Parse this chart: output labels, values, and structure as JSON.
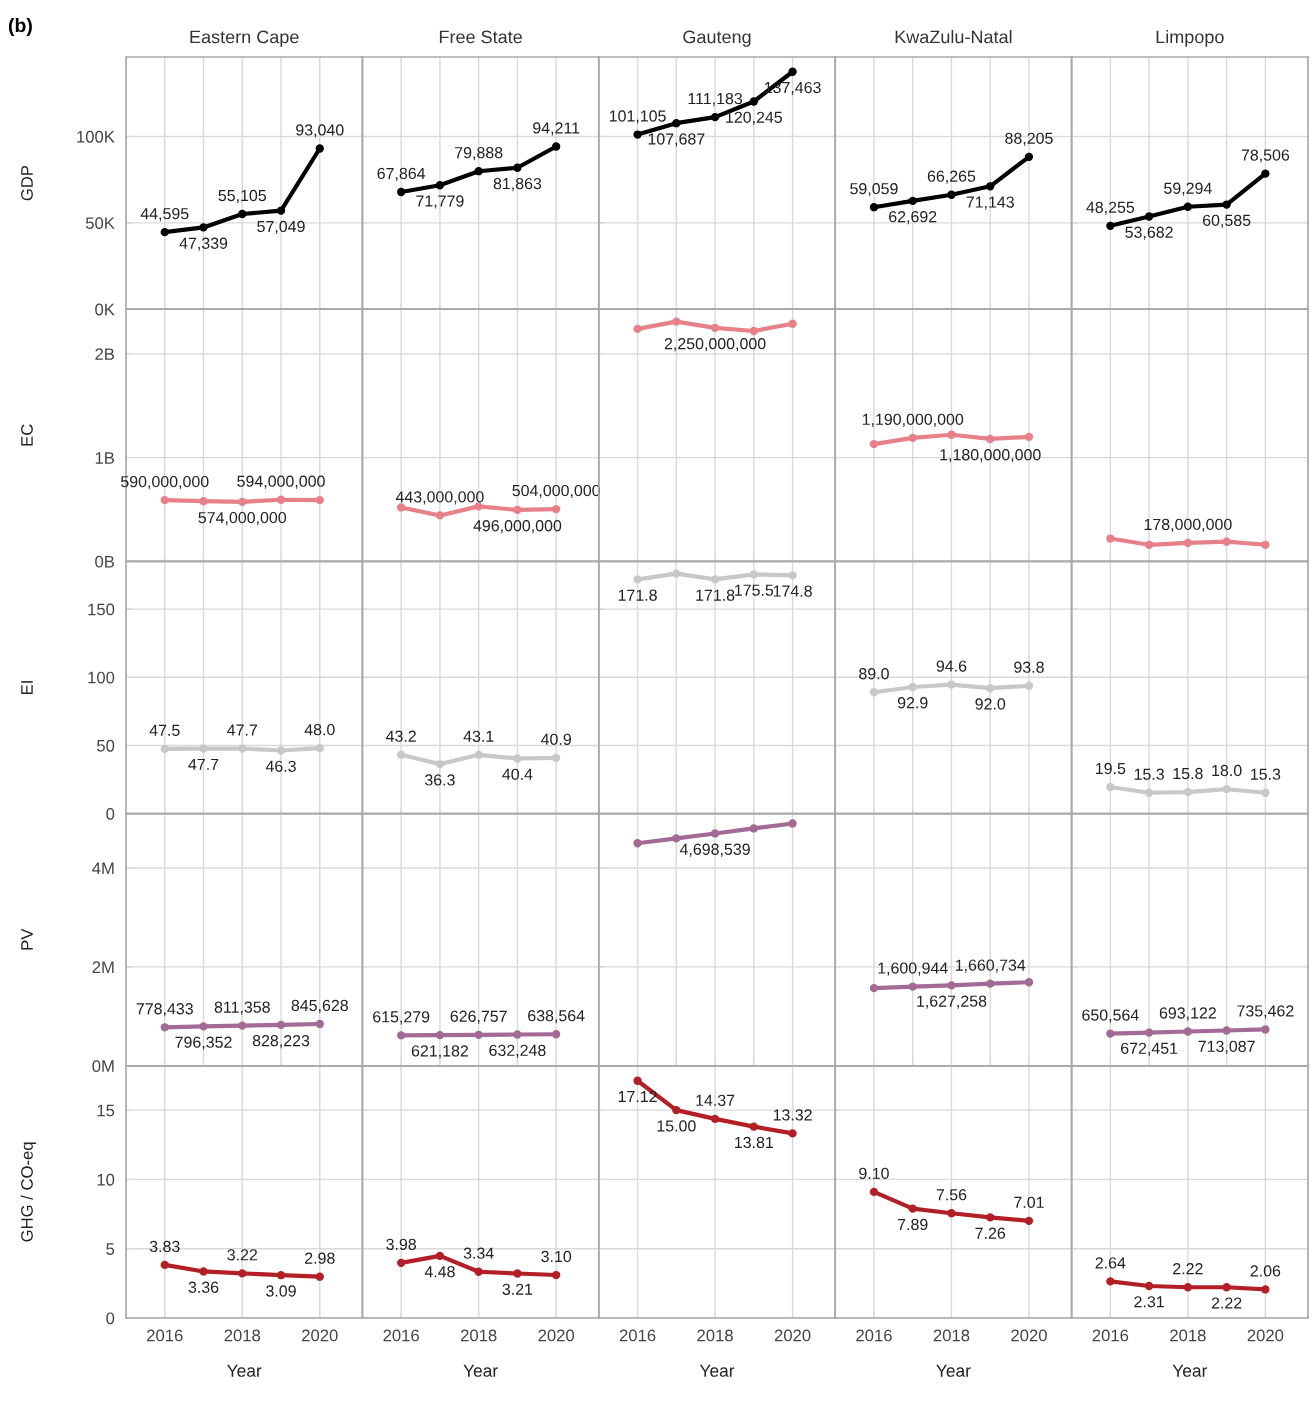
{
  "chart_data": [
    {
      "type": "line",
      "title": "Eastern Cape",
      "ylabel": "GDP",
      "annotations": [
        "(b)"
      ],
      "x": [
        2016,
        2017,
        2018,
        2019,
        2020
      ],
      "values": [
        44595,
        47339,
        55105,
        57049,
        93040
      ],
      "value_labels": [
        "44,595",
        "47,339",
        "55,105",
        "57,049",
        "93,040"
      ],
      "color": "#000000",
      "marker": "circle",
      "line_style": "solid",
      "xlim": [
        2015,
        2021.1
      ],
      "xticks": [
        2016,
        2017,
        2018,
        2019,
        2020
      ],
      "ylim": [
        0,
        146000
      ],
      "yticks": [
        {
          "value": 0,
          "label": "0K"
        },
        {
          "value": 50000,
          "label": "50K"
        },
        {
          "value": 100000,
          "label": "100K"
        }
      ],
      "grid": true,
      "tick_labels": "y"
    },
    {
      "type": "line",
      "title": "Free State",
      "x": [
        2016,
        2017,
        2018,
        2019,
        2020
      ],
      "values": [
        67864,
        71779,
        79888,
        81863,
        94211
      ],
      "value_labels": [
        "67,864",
        "71,779",
        "79,888",
        "81,863",
        "94,211"
      ],
      "color": "#000000",
      "marker": "circle",
      "line_style": "solid",
      "xlim": [
        2015,
        2021.1
      ],
      "xticks": [
        2016,
        2017,
        2018,
        2019,
        2020
      ],
      "ylim": [
        0,
        146000
      ],
      "yticks": [
        0,
        50000,
        100000
      ],
      "grid": true,
      "tick_labels": false
    },
    {
      "type": "line",
      "title": "Gauteng",
      "x": [
        2016,
        2017,
        2018,
        2019,
        2020
      ],
      "values": [
        101105,
        107687,
        111183,
        120245,
        137463
      ],
      "value_labels": [
        "101,105",
        "107,687",
        "111,183",
        "120,245",
        "137,463"
      ],
      "color": "#000000",
      "marker": "circle",
      "line_style": "solid",
      "xlim": [
        2015,
        2021.1
      ],
      "xticks": [
        2016,
        2017,
        2018,
        2019,
        2020
      ],
      "ylim": [
        0,
        146000
      ],
      "yticks": [
        0,
        50000,
        100000
      ],
      "grid": true,
      "tick_labels": false
    },
    {
      "type": "line",
      "title": "KwaZulu-Natal",
      "x": [
        2016,
        2017,
        2018,
        2019,
        2020
      ],
      "values": [
        59059,
        62692,
        66265,
        71143,
        88205
      ],
      "value_labels": [
        "59,059",
        "62,692",
        "66,265",
        "71,143",
        "88,205"
      ],
      "color": "#000000",
      "marker": "circle",
      "line_style": "solid",
      "xlim": [
        2015,
        2021.1
      ],
      "xticks": [
        2016,
        2017,
        2018,
        2019,
        2020
      ],
      "ylim": [
        0,
        146000
      ],
      "yticks": [
        0,
        50000,
        100000
      ],
      "grid": true,
      "tick_labels": false
    },
    {
      "type": "line",
      "title": "Limpopo",
      "x": [
        2016,
        2017,
        2018,
        2019,
        2020
      ],
      "values": [
        48255,
        53682,
        59294,
        60585,
        78506
      ],
      "value_labels": [
        "48,255",
        "53,682",
        "59,294",
        "60,585",
        "78,506"
      ],
      "color": "#000000",
      "marker": "circle",
      "line_style": "solid",
      "xlim": [
        2015,
        2021.1
      ],
      "xticks": [
        2016,
        2017,
        2018,
        2019,
        2020
      ],
      "ylim": [
        0,
        146000
      ],
      "yticks": [
        0,
        50000,
        100000
      ],
      "grid": true,
      "tick_labels": false
    },
    {
      "type": "line",
      "ylabel": "EC",
      "x": [
        2016,
        2017,
        2018,
        2019,
        2020
      ],
      "values": [
        590000000,
        580000000,
        574000000,
        594000000,
        590000000
      ],
      "value_labels": [
        "590,000,000",
        null,
        "574,000,000",
        "594,000,000",
        null
      ],
      "color": "#e8808a",
      "marker": "circle",
      "line_style": "solid",
      "xlim": [
        2015,
        2021.1
      ],
      "xticks": [
        2016,
        2017,
        2018,
        2019,
        2020
      ],
      "ylim": [
        0,
        2430000000
      ],
      "yticks": [
        {
          "value": 0,
          "label": "0B"
        },
        {
          "value": 1000000000,
          "label": "1B"
        },
        {
          "value": 2000000000,
          "label": "2B"
        }
      ],
      "grid": true,
      "tick_labels": "y"
    },
    {
      "type": "line",
      "x": [
        2016,
        2017,
        2018,
        2019,
        2020
      ],
      "values": [
        520000000,
        443000000,
        530000000,
        496000000,
        504000000
      ],
      "value_labels": [
        null,
        "443,000,000",
        null,
        "496,000,000",
        "504,000,000"
      ],
      "color": "#e8808a",
      "marker": "circle",
      "line_style": "solid",
      "xlim": [
        2015,
        2021.1
      ],
      "xticks": [
        2016,
        2017,
        2018,
        2019,
        2020
      ],
      "ylim": [
        0,
        2430000000
      ],
      "yticks": [
        0,
        1000000000,
        2000000000
      ],
      "grid": true,
      "tick_labels": false
    },
    {
      "type": "line",
      "x": [
        2016,
        2017,
        2018,
        2019,
        2020
      ],
      "values": [
        2240000000,
        2310000000,
        2250000000,
        2220000000,
        2290000000
      ],
      "value_labels": [
        null,
        null,
        "2,250,000,000",
        null,
        null
      ],
      "color": "#e8808a",
      "marker": "circle",
      "line_style": "solid",
      "xlim": [
        2015,
        2021.1
      ],
      "xticks": [
        2016,
        2017,
        2018,
        2019,
        2020
      ],
      "ylim": [
        0,
        2430000000
      ],
      "yticks": [
        0,
        1000000000,
        2000000000
      ],
      "grid": true,
      "tick_labels": false
    },
    {
      "type": "line",
      "x": [
        2016,
        2017,
        2018,
        2019,
        2020
      ],
      "values": [
        1130000000,
        1190000000,
        1220000000,
        1180000000,
        1200000000
      ],
      "value_labels": [
        null,
        "1,190,000,000",
        null,
        "1,180,000,000",
        null
      ],
      "color": "#e8808a",
      "marker": "circle",
      "line_style": "solid",
      "xlim": [
        2015,
        2021.1
      ],
      "xticks": [
        2016,
        2017,
        2018,
        2019,
        2020
      ],
      "ylim": [
        0,
        2430000000
      ],
      "yticks": [
        0,
        1000000000,
        2000000000
      ],
      "grid": true,
      "tick_labels": false
    },
    {
      "type": "line",
      "x": [
        2016,
        2017,
        2018,
        2019,
        2020
      ],
      "values": [
        220000000,
        160000000,
        178000000,
        190000000,
        160000000
      ],
      "value_labels": [
        null,
        null,
        "178,000,000",
        null,
        null
      ],
      "color": "#e8808a",
      "marker": "circle",
      "line_style": "solid",
      "xlim": [
        2015,
        2021.1
      ],
      "xticks": [
        2016,
        2017,
        2018,
        2019,
        2020
      ],
      "ylim": [
        0,
        2430000000
      ],
      "yticks": [
        0,
        1000000000,
        2000000000
      ],
      "grid": true,
      "tick_labels": false
    },
    {
      "type": "line",
      "ylabel": "EI",
      "x": [
        2016,
        2017,
        2018,
        2019,
        2020
      ],
      "values": [
        47.5,
        47.7,
        47.7,
        46.3,
        48.0
      ],
      "value_labels": [
        "47.5",
        "47.7",
        "47.7",
        "46.3",
        "48.0"
      ],
      "color": "#c8c8c8",
      "marker": "circle",
      "line_style": "solid",
      "xlim": [
        2015,
        2021.1
      ],
      "xticks": [
        2016,
        2017,
        2018,
        2019,
        2020
      ],
      "ylim": [
        0,
        185
      ],
      "yticks": [
        0,
        50,
        100,
        150
      ],
      "grid": true,
      "tick_labels": "y"
    },
    {
      "type": "line",
      "x": [
        2016,
        2017,
        2018,
        2019,
        2020
      ],
      "values": [
        43.2,
        36.3,
        43.1,
        40.4,
        40.9
      ],
      "value_labels": [
        "43.2",
        "36.3",
        "43.1",
        "40.4",
        "40.9"
      ],
      "color": "#c8c8c8",
      "marker": "circle",
      "line_style": "solid",
      "xlim": [
        2015,
        2021.1
      ],
      "xticks": [
        2016,
        2017,
        2018,
        2019,
        2020
      ],
      "ylim": [
        0,
        185
      ],
      "yticks": [
        0,
        50,
        100,
        150
      ],
      "grid": true,
      "tick_labels": false
    },
    {
      "type": "line",
      "x": [
        2016,
        2017,
        2018,
        2019,
        2020
      ],
      "values": [
        171.8,
        176,
        171.8,
        175.5,
        174.8
      ],
      "value_labels": [
        "171.8",
        null,
        "171.8",
        "175.5",
        "174.8"
      ],
      "color": "#c8c8c8",
      "marker": "circle",
      "line_style": "solid",
      "xlim": [
        2015,
        2021.1
      ],
      "xticks": [
        2016,
        2017,
        2018,
        2019,
        2020
      ],
      "ylim": [
        0,
        185
      ],
      "yticks": [
        0,
        50,
        100,
        150
      ],
      "grid": true,
      "tick_labels": false
    },
    {
      "type": "line",
      "x": [
        2016,
        2017,
        2018,
        2019,
        2020
      ],
      "values": [
        89.0,
        92.9,
        94.6,
        92.0,
        93.8
      ],
      "value_labels": [
        "89.0",
        "92.9",
        "94.6",
        "92.0",
        "93.8"
      ],
      "color": "#c8c8c8",
      "marker": "circle",
      "line_style": "solid",
      "xlim": [
        2015,
        2021.1
      ],
      "xticks": [
        2016,
        2017,
        2018,
        2019,
        2020
      ],
      "ylim": [
        0,
        185
      ],
      "yticks": [
        0,
        50,
        100,
        150
      ],
      "grid": true,
      "tick_labels": false
    },
    {
      "type": "line",
      "x": [
        2016,
        2017,
        2018,
        2019,
        2020
      ],
      "values": [
        19.5,
        15.3,
        15.8,
        18.0,
        15.3
      ],
      "value_labels": [
        "19.5",
        "15.3",
        "15.8",
        "18.0",
        "15.3"
      ],
      "color": "#c8c8c8",
      "marker": "circle",
      "line_style": "solid",
      "xlim": [
        2015,
        2021.1
      ],
      "xticks": [
        2016,
        2017,
        2018,
        2019,
        2020
      ],
      "ylim": [
        0,
        185
      ],
      "yticks": [
        0,
        50,
        100,
        150
      ],
      "grid": true,
      "tick_labels": false
    },
    {
      "type": "line",
      "ylabel": "PV",
      "x": [
        2016,
        2017,
        2018,
        2019,
        2020
      ],
      "values": [
        778433,
        796352,
        811358,
        828223,
        845628
      ],
      "value_labels": [
        "778,433",
        "796,352",
        "811,358",
        "828,223",
        "845,628"
      ],
      "color": "#a26a94",
      "marker": "circle",
      "line_style": "solid",
      "xlim": [
        2015,
        2021.1
      ],
      "xticks": [
        2016,
        2017,
        2018,
        2019,
        2020
      ],
      "ylim": [
        0,
        5100000
      ],
      "yticks": [
        {
          "value": 0,
          "label": "0M"
        },
        {
          "value": 2000000,
          "label": "2M"
        },
        {
          "value": 4000000,
          "label": "4M"
        }
      ],
      "grid": true,
      "tick_labels": "y"
    },
    {
      "type": "line",
      "x": [
        2016,
        2017,
        2018,
        2019,
        2020
      ],
      "values": [
        615279,
        621182,
        626757,
        632248,
        638564
      ],
      "value_labels": [
        "615,279",
        "621,182",
        "626,757",
        "632,248",
        "638,564"
      ],
      "color": "#a26a94",
      "marker": "circle",
      "line_style": "solid",
      "xlim": [
        2015,
        2021.1
      ],
      "xticks": [
        2016,
        2017,
        2018,
        2019,
        2020
      ],
      "ylim": [
        0,
        5100000
      ],
      "yticks": [
        0,
        2000000,
        4000000
      ],
      "grid": true,
      "tick_labels": false
    },
    {
      "type": "line",
      "x": [
        2016,
        2017,
        2018,
        2019,
        2020
      ],
      "values": [
        4500000,
        4600000,
        4698539,
        4800000,
        4900000
      ],
      "value_labels": [
        null,
        null,
        "4,698,539",
        null,
        null
      ],
      "color": "#a26a94",
      "marker": "circle",
      "line_style": "solid",
      "xlim": [
        2015,
        2021.1
      ],
      "xticks": [
        2016,
        2017,
        2018,
        2019,
        2020
      ],
      "ylim": [
        0,
        5100000
      ],
      "yticks": [
        0,
        2000000,
        4000000
      ],
      "grid": true,
      "tick_labels": false
    },
    {
      "type": "line",
      "x": [
        2016,
        2017,
        2018,
        2019,
        2020
      ],
      "values": [
        1570000,
        1600944,
        1627258,
        1660734,
        1690000
      ],
      "value_labels": [
        null,
        "1,600,944",
        "1,627,258",
        "1,660,734",
        null
      ],
      "color": "#a26a94",
      "marker": "circle",
      "line_style": "solid",
      "xlim": [
        2015,
        2021.1
      ],
      "xticks": [
        2016,
        2017,
        2018,
        2019,
        2020
      ],
      "ylim": [
        0,
        5100000
      ],
      "yticks": [
        0,
        2000000,
        4000000
      ],
      "grid": true,
      "tick_labels": false
    },
    {
      "type": "line",
      "x": [
        2016,
        2017,
        2018,
        2019,
        2020
      ],
      "values": [
        650564,
        672451,
        693122,
        713087,
        735462
      ],
      "value_labels": [
        "650,564",
        "672,451",
        "693,122",
        "713,087",
        "735,462"
      ],
      "color": "#a26a94",
      "marker": "circle",
      "line_style": "solid",
      "xlim": [
        2015,
        2021.1
      ],
      "xticks": [
        2016,
        2017,
        2018,
        2019,
        2020
      ],
      "ylim": [
        0,
        5100000
      ],
      "yticks": [
        0,
        2000000,
        4000000
      ],
      "grid": true,
      "tick_labels": false
    },
    {
      "type": "line",
      "ylabel": "GHG / CO-eq",
      "xlabel": "Year",
      "x": [
        2016,
        2017,
        2018,
        2019,
        2020
      ],
      "values": [
        3.83,
        3.36,
        3.22,
        3.09,
        2.98
      ],
      "value_labels": [
        "3.83",
        "3.36",
        "3.22",
        "3.09",
        "2.98"
      ],
      "color": "#b22026",
      "marker": "circle",
      "line_style": "solid",
      "xlim": [
        2015,
        2021.1
      ],
      "xticks": [
        2016,
        2018,
        2020
      ],
      "ylim": [
        0,
        18.2
      ],
      "yticks": [
        0,
        5,
        10,
        15
      ],
      "grid": true
    },
    {
      "type": "line",
      "xlabel": "Year",
      "x": [
        2016,
        2017,
        2018,
        2019,
        2020
      ],
      "values": [
        3.98,
        4.48,
        3.34,
        3.21,
        3.1
      ],
      "value_labels": [
        "3.98",
        "4.48",
        "3.34",
        "3.21",
        "3.10"
      ],
      "color": "#b22026",
      "marker": "circle",
      "line_style": "solid",
      "xlim": [
        2015,
        2021.1
      ],
      "xticks": [
        2016,
        2018,
        2020
      ],
      "ylim": [
        0,
        18.2
      ],
      "yticks": [
        0,
        5,
        10,
        15
      ],
      "grid": true,
      "tick_labels": "x"
    },
    {
      "type": "line",
      "xlabel": "Year",
      "x": [
        2016,
        2017,
        2018,
        2019,
        2020
      ],
      "values": [
        17.12,
        15.0,
        14.37,
        13.81,
        13.32
      ],
      "value_labels": [
        "17.12",
        "15.00",
        "14.37",
        "13.81",
        "13.32"
      ],
      "color": "#b22026",
      "marker": "circle",
      "line_style": "solid",
      "xlim": [
        2015,
        2021.1
      ],
      "xticks": [
        2016,
        2018,
        2020
      ],
      "ylim": [
        0,
        18.2
      ],
      "yticks": [
        0,
        5,
        10,
        15
      ],
      "grid": true,
      "tick_labels": "x"
    },
    {
      "type": "line",
      "xlabel": "Year",
      "x": [
        2016,
        2017,
        2018,
        2019,
        2020
      ],
      "values": [
        9.1,
        7.89,
        7.56,
        7.26,
        7.01
      ],
      "value_labels": [
        "9.10",
        "7.89",
        "7.56",
        "7.26",
        "7.01"
      ],
      "color": "#b22026",
      "marker": "circle",
      "line_style": "solid",
      "xlim": [
        2015,
        2021.1
      ],
      "xticks": [
        2016,
        2018,
        2020
      ],
      "ylim": [
        0,
        18.2
      ],
      "yticks": [
        0,
        5,
        10,
        15
      ],
      "grid": true,
      "tick_labels": "x"
    },
    {
      "type": "line",
      "xlabel": "Year",
      "x": [
        2016,
        2017,
        2018,
        2019,
        2020
      ],
      "values": [
        2.64,
        2.31,
        2.22,
        2.22,
        2.06
      ],
      "value_labels": [
        "2.64",
        "2.31",
        "2.22",
        "2.22",
        "2.06"
      ],
      "color": "#b22026",
      "marker": "circle",
      "line_style": "solid",
      "xlim": [
        2015,
        2021.1
      ],
      "xticks": [
        2016,
        2018,
        2020
      ],
      "ylim": [
        0,
        18.2
      ],
      "yticks": [
        0,
        5,
        10,
        15
      ],
      "grid": true,
      "tick_labels": "x"
    }
  ]
}
